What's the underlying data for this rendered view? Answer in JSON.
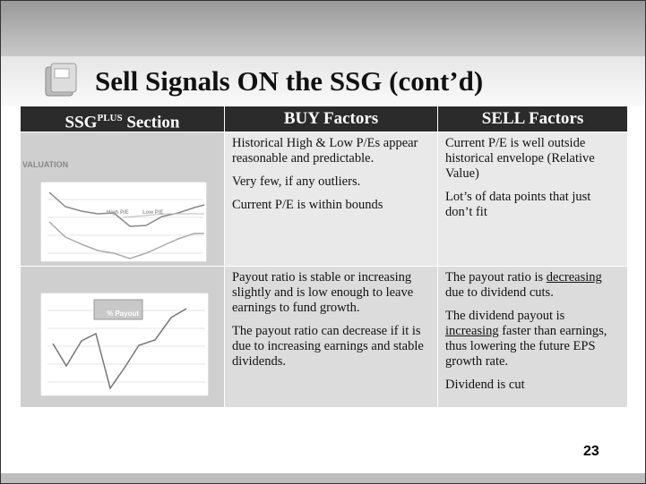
{
  "slide": {
    "title": "Sell Signals ON the SSG (cont’d)",
    "table": {
      "headers": [
        {
          "main": "SSG",
          "superscript": "PLUS",
          "suffix": " Section"
        },
        "BUY Factors",
        "SELL Factors"
      ],
      "rows": [
        {
          "section_label": "VALUATION",
          "chart_legend": [
            "High P/E",
            "Low P/E"
          ],
          "buy": [
            "Historical High & Low P/Es appear reasonable and predictable.",
            "Very few, if any outliers.",
            "Current P/E is within bounds"
          ],
          "sell": [
            "Current P/E is well outside historical envelope (Relative Value)",
            "Lot’s of data points that just don’t fit"
          ]
        },
        {
          "chart_legend": [
            "% Payout"
          ],
          "buy": [
            "Payout ratio is stable or increasing slightly and is low enough to leave earnings to fund growth.",
            "The payout ratio can decrease if it is due to increasing earnings and stable dividends."
          ],
          "sell": [
            {
              "before": "The payout ratio is ",
              "underlined": "decreasing",
              "after": " due to dividend cuts."
            },
            {
              "before": "The dividend payout is ",
              "underlined": "increasing",
              "after": " faster than earnings, thus lowering the future EPS growth rate."
            },
            "Dividend is cut"
          ]
        }
      ]
    },
    "page_number": "23"
  }
}
